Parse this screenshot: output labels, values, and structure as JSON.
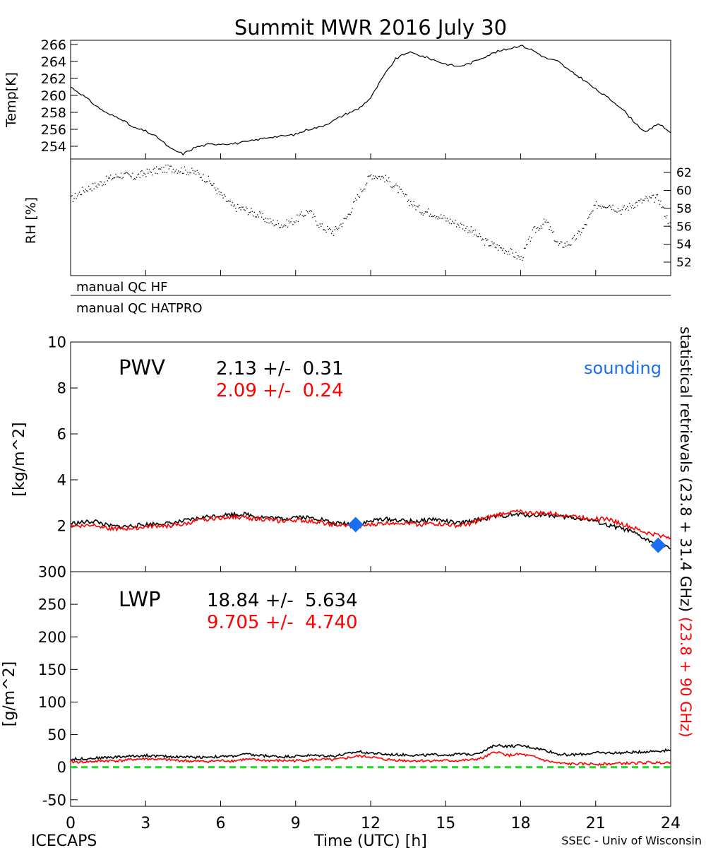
{
  "colors": {
    "hf": "#000000",
    "hatpro": "#ff0000",
    "sounding": "#1a6ff0",
    "zero_line": "#22dd22"
  },
  "labels": {
    "title": "Summit MWR 2016 July 30",
    "left_footer": "ICECAPS",
    "right_footer": "SSEC - Univ of Wisconsin",
    "xlabel": "Time (UTC) [h]",
    "qc_hf": "manual QC HF",
    "qc_hatpro": "manual QC HATPRO",
    "side_black": "statistical retrievals (23.8 + 31.4 GHz)",
    "side_red": "(23.8 + 90 GHz)",
    "sounding": "sounding",
    "pwv": {
      "name": "PWV",
      "hf": "2.13 +/-  0.31",
      "hatpro": "2.09 +/-  0.24"
    },
    "lwp": {
      "name": "LWP",
      "hf": "18.84 +/-  5.634",
      "hatpro": "9.705 +/-  4.740"
    }
  },
  "chart_data": [
    {
      "type": "line",
      "ylabel": "Temp[K]",
      "ylim": [
        252.5,
        266.5
      ],
      "yticks": [
        "254",
        "256",
        "258",
        "260",
        "262",
        "264",
        "266"
      ],
      "xlim": [
        0,
        24
      ],
      "series": [
        {
          "x": [
            0,
            0.5,
            1,
            1.5,
            2,
            2.5,
            3,
            3.5,
            4,
            4.5,
            5,
            5.5,
            6,
            6.5,
            7,
            7.5,
            8,
            8.5,
            9,
            9.5,
            10,
            10.5,
            11,
            11.5,
            12,
            12.5,
            13,
            13.5,
            14,
            14.5,
            15,
            15.5,
            16,
            16.5,
            17,
            17.5,
            18,
            18.5,
            19,
            19.5,
            20,
            20.5,
            21,
            21.5,
            22,
            22.5,
            23,
            23.5,
            24
          ],
          "values": [
            261.0,
            260.0,
            258.8,
            257.8,
            257.3,
            256.2,
            255.8,
            255.0,
            253.7,
            253.1,
            253.9,
            254.2,
            254.3,
            254.3,
            254.5,
            254.8,
            255.1,
            255.2,
            255.4,
            256.0,
            256.3,
            257.0,
            257.8,
            258.4,
            259.7,
            262.2,
            264.3,
            265.1,
            264.7,
            264.2,
            263.7,
            263.4,
            263.8,
            264.5,
            265.1,
            265.5,
            265.9,
            265.3,
            264.4,
            264.0,
            262.8,
            261.9,
            260.7,
            259.7,
            258.6,
            257.0,
            255.6,
            256.7,
            255.6
          ]
        }
      ]
    },
    {
      "type": "scatter",
      "ylabel": "RH [%]",
      "ylim": [
        50.5,
        63.5
      ],
      "yticks": [
        "52",
        "54",
        "56",
        "58",
        "60",
        "62"
      ],
      "xlim": [
        0,
        24
      ],
      "series": [
        {
          "x": [
            0,
            0.5,
            1,
            1.5,
            2,
            2.5,
            3,
            3.5,
            4,
            4.5,
            5,
            5.5,
            6,
            6.5,
            7,
            7.5,
            8,
            8.5,
            9,
            9.5,
            10,
            10.5,
            11,
            11.5,
            12,
            12.5,
            13,
            13.5,
            14,
            14.5,
            15,
            15.5,
            16,
            16.5,
            17,
            17.5,
            18,
            18.5,
            19,
            19.5,
            20,
            20.5,
            21,
            21.5,
            22,
            22.5,
            23,
            23.5,
            24
          ],
          "values": [
            59.0,
            60.1,
            60.6,
            61.3,
            61.8,
            61.5,
            62.0,
            62.3,
            62.5,
            62.3,
            62.0,
            61.2,
            59.5,
            58.2,
            57.9,
            57.3,
            56.5,
            56.2,
            56.8,
            57.8,
            56.0,
            55.4,
            56.9,
            59.5,
            61.8,
            61.5,
            60.4,
            58.9,
            57.8,
            57.5,
            56.8,
            56.3,
            55.6,
            54.4,
            53.8,
            53.3,
            52.4,
            55.5,
            56.6,
            53.9,
            54.2,
            55.8,
            58.4,
            58.5,
            57.8,
            58.5,
            59.0,
            59.2,
            55.9
          ]
        }
      ]
    },
    {
      "type": "line",
      "ylabel": "[kg/m^2]",
      "ylim": [
        0,
        10
      ],
      "yticks": [
        "0",
        "2",
        "4",
        "6",
        "8",
        "10"
      ],
      "xlim": [
        0,
        24
      ],
      "series": [
        {
          "x": [
            0,
            0.5,
            1,
            1.5,
            2,
            2.5,
            3,
            3.5,
            4,
            4.5,
            5,
            5.5,
            6,
            6.5,
            7,
            7.5,
            8,
            8.5,
            9,
            9.5,
            10,
            10.5,
            11,
            11.5,
            12,
            12.5,
            13,
            13.5,
            14,
            14.5,
            15,
            15.5,
            16,
            16.5,
            17,
            17.5,
            18,
            18.5,
            19,
            19.5,
            20,
            20.5,
            21,
            21.5,
            22,
            22.5,
            23,
            23.5,
            24
          ],
          "values": [
            2.1,
            2.15,
            2.2,
            2.0,
            1.95,
            2.0,
            2.05,
            2.1,
            2.1,
            2.2,
            2.3,
            2.4,
            2.45,
            2.5,
            2.5,
            2.4,
            2.35,
            2.3,
            2.4,
            2.35,
            2.3,
            2.1,
            2.1,
            2.05,
            2.2,
            2.3,
            2.25,
            2.2,
            2.2,
            2.3,
            2.2,
            2.1,
            2.2,
            2.3,
            2.4,
            2.45,
            2.5,
            2.45,
            2.5,
            2.4,
            2.35,
            2.3,
            2.2,
            2.0,
            1.9,
            1.7,
            1.4,
            1.2,
            1.0
          ]
        },
        {
          "x": [
            0,
            0.5,
            1,
            1.5,
            2,
            2.5,
            3,
            3.5,
            4,
            4.5,
            5,
            5.5,
            6,
            6.5,
            7,
            7.5,
            8,
            8.5,
            9,
            9.5,
            10,
            10.5,
            11,
            11.5,
            12,
            12.5,
            13,
            13.5,
            14,
            14.5,
            15,
            15.5,
            16,
            16.5,
            17,
            17.5,
            18,
            18.5,
            19,
            19.5,
            20,
            20.5,
            21,
            21.5,
            22,
            22.5,
            23,
            23.5,
            24
          ],
          "values": [
            2.0,
            2.0,
            2.05,
            1.9,
            1.85,
            1.9,
            1.95,
            2.0,
            2.0,
            2.05,
            2.2,
            2.3,
            2.35,
            2.4,
            2.35,
            2.3,
            2.25,
            2.2,
            2.25,
            2.2,
            2.15,
            2.05,
            2.0,
            1.95,
            2.05,
            2.1,
            2.15,
            2.1,
            2.05,
            2.1,
            2.05,
            2.0,
            2.1,
            2.3,
            2.45,
            2.6,
            2.6,
            2.55,
            2.55,
            2.5,
            2.45,
            2.35,
            2.3,
            2.3,
            2.1,
            1.9,
            1.7,
            1.6,
            1.5
          ]
        }
      ],
      "sounding_points": [
        {
          "x": 11.4,
          "y": 2.05
        },
        {
          "x": 23.5,
          "y": 1.15
        }
      ]
    },
    {
      "type": "line",
      "ylabel": "[g/m^2]",
      "ylim": [
        -60,
        300
      ],
      "yticks": [
        "-50",
        "0",
        "50",
        "100",
        "150",
        "200",
        "250",
        "300"
      ],
      "xlabel": "Time (UTC) [h]",
      "xlim": [
        0,
        24
      ],
      "xticks": [
        "0",
        "3",
        "6",
        "9",
        "12",
        "15",
        "18",
        "21",
        "24"
      ],
      "series": [
        {
          "x": [
            0,
            0.5,
            1,
            1.5,
            2,
            2.5,
            3,
            3.5,
            4,
            4.5,
            5,
            5.5,
            6,
            6.5,
            7,
            7.5,
            8,
            8.5,
            9,
            9.5,
            10,
            10.5,
            11,
            11.5,
            12,
            12.5,
            13,
            13.5,
            14,
            14.5,
            15,
            15.5,
            16,
            16.5,
            17,
            17.5,
            18,
            18.5,
            19,
            19.5,
            20,
            20.5,
            21,
            21.5,
            22,
            22.5,
            23,
            23.5,
            24
          ],
          "values": [
            12,
            13,
            14,
            15,
            16,
            17,
            18,
            17,
            16,
            16,
            15,
            16,
            16,
            17,
            20,
            18,
            17,
            16,
            17,
            18,
            18,
            17,
            20,
            24,
            22,
            20,
            19,
            19,
            18,
            19,
            19,
            20,
            20,
            24,
            34,
            32,
            33,
            30,
            26,
            20,
            19,
            20,
            22,
            22,
            22,
            23,
            24,
            25,
            26
          ]
        },
        {
          "x": [
            0,
            0.5,
            1,
            1.5,
            2,
            2.5,
            3,
            3.5,
            4,
            4.5,
            5,
            5.5,
            6,
            6.5,
            7,
            7.5,
            8,
            8.5,
            9,
            9.5,
            10,
            10.5,
            11,
            11.5,
            12,
            12.5,
            13,
            13.5,
            14,
            14.5,
            15,
            15.5,
            16,
            16.5,
            17,
            17.5,
            18,
            18.5,
            19,
            19.5,
            20,
            20.5,
            21,
            21.5,
            22,
            22.5,
            23,
            23.5,
            24
          ],
          "values": [
            8,
            8,
            9,
            10,
            10,
            12,
            13,
            12,
            11,
            10,
            9,
            9,
            10,
            10,
            12,
            11,
            10,
            10,
            10,
            11,
            12,
            11,
            14,
            17,
            16,
            12,
            11,
            10,
            10,
            10,
            10,
            10,
            11,
            14,
            24,
            18,
            20,
            16,
            10,
            6,
            5,
            5,
            5,
            5,
            6,
            6,
            7,
            7,
            8
          ]
        }
      ],
      "reference_line": 0
    }
  ]
}
